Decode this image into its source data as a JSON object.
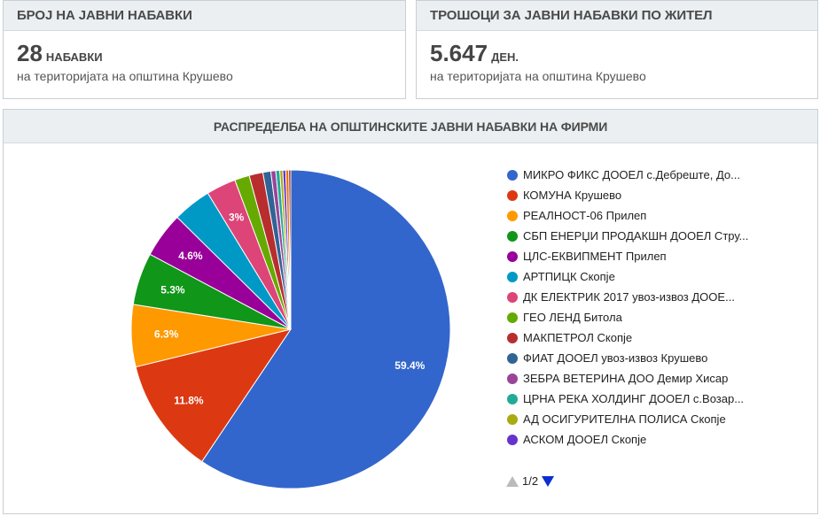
{
  "card1": {
    "title": "БРОЈ НА ЈАВНИ НАБАВКИ",
    "value": "28",
    "unit": "НАБАВКИ",
    "subtitle": "на територијата на општина Крушево"
  },
  "card2": {
    "title": "ТРОШОЦИ ЗА ЈАВНИ НАБАВКИ ПО ЖИТЕЛ",
    "value": "5.647",
    "unit": "ДЕН.",
    "subtitle": "на територијата на општина Крушево"
  },
  "chart_card": {
    "title": "РАСПРЕДЕЛБА НА ОПШТИНСКИТЕ ЈАВНИ НАБАВКИ НА ФИРМИ"
  },
  "pager": {
    "label": "1/2"
  },
  "chart_data": {
    "type": "pie",
    "title": "РАСПРЕДЕЛБА НА ОПШТИНСКИТЕ ЈАВНИ НАБАВКИ НА ФИРМИ",
    "legend_position": "right",
    "slices": [
      {
        "label": "МИКРО ФИКС ДООЕЛ с.Дебреште, До...",
        "value": 59.4,
        "color": "#3366cc",
        "data_label": "59.4%"
      },
      {
        "label": "КОМУНА Крушево",
        "value": 11.8,
        "color": "#dc3912",
        "data_label": "11.8%"
      },
      {
        "label": "РЕАЛНОСТ-06 Прилеп",
        "value": 6.3,
        "color": "#ff9900",
        "data_label": "6.3%"
      },
      {
        "label": "СБП ЕНЕРЏИ ПРОДАКШН ДООЕЛ Стру...",
        "value": 5.3,
        "color": "#109618",
        "data_label": "5.3%"
      },
      {
        "label": "ЦЛС-ЕКВИПМЕНТ Прилеп",
        "value": 4.6,
        "color": "#990099",
        "data_label": "4.6%"
      },
      {
        "label": "АРТПИЦК Скопје",
        "value": 3.9,
        "color": "#0099c6",
        "data_label": ""
      },
      {
        "label": "ДК ЕЛЕКТРИК 2017 увоз-извоз ДООЕ...",
        "value": 3.0,
        "color": "#dd4477",
        "data_label": "3%"
      },
      {
        "label": "ГЕО ЛЕНД Битола",
        "value": 1.5,
        "color": "#66aa00",
        "data_label": ""
      },
      {
        "label": "МАКПЕТРОЛ Скопје",
        "value": 1.4,
        "color": "#b82e2e",
        "data_label": ""
      },
      {
        "label": "ФИАТ ДООЕЛ увоз-извоз Крушево",
        "value": 0.8,
        "color": "#316395",
        "data_label": ""
      },
      {
        "label": "ЗЕБРА ВЕТЕРИНА ДОО Демир Хисар",
        "value": 0.5,
        "color": "#994499",
        "data_label": ""
      },
      {
        "label": "ЦРНА РЕКА ХОЛДИНГ ДООЕЛ с.Возар...",
        "value": 0.4,
        "color": "#22aa99",
        "data_label": ""
      },
      {
        "label": "АД ОСИГУРИТЕЛНА ПОЛИСА Скопје",
        "value": 0.3,
        "color": "#aaaa11",
        "data_label": ""
      },
      {
        "label": "АСКОМ ДООЕЛ Скопје",
        "value": 0.3,
        "color": "#6633cc",
        "data_label": ""
      },
      {
        "value": 0.3,
        "color": "#e67300",
        "data_label": ""
      },
      {
        "value": 0.2,
        "color": "#8b0707",
        "data_label": ""
      }
    ]
  }
}
